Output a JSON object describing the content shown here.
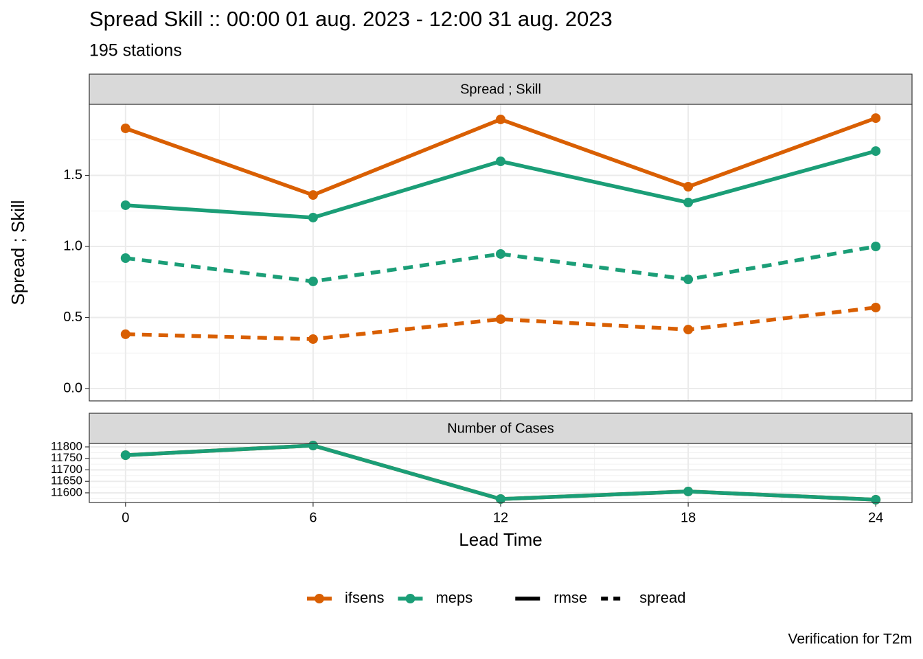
{
  "title": "Spread Skill :: 00:00 01 aug. 2023 - 12:00 31 aug. 2023",
  "subtitle": "195 stations",
  "caption": "Verification for T2m",
  "legend": {
    "colour": [
      {
        "name": "ifsens",
        "color": "#d95f02"
      },
      {
        "name": "meps",
        "color": "#1b9e77"
      }
    ],
    "linetype": [
      {
        "name": "rmse",
        "dash": "solid"
      },
      {
        "name": "spread",
        "dash": "dashed"
      }
    ]
  },
  "chart_data": [
    {
      "type": "line",
      "strip": "Spread ; Skill",
      "y_label": "Spread ; Skill",
      "x": [
        0,
        6,
        12,
        18,
        24
      ],
      "xlim": [
        -1.16,
        25.16
      ],
      "xticks": [
        0,
        6,
        12,
        18,
        24
      ],
      "x_minor": [
        3,
        9,
        15,
        21
      ],
      "ylim": [
        -0.087,
        2.0
      ],
      "yticks": [
        {
          "value": 0,
          "label": "0.0"
        },
        0.5,
        {
          "value": 1,
          "label": "1.0"
        },
        1.5
      ],
      "y_minor": [
        0.25,
        0.75,
        1.25,
        1.75
      ],
      "grid": true,
      "series": [
        {
          "color": "#d95f02",
          "dash": "solid",
          "values": [
            1.831,
            1.362,
            1.894,
            1.42,
            1.903
          ]
        },
        {
          "color": "#1b9e77",
          "dash": "solid",
          "values": [
            1.29,
            1.203,
            1.599,
            1.309,
            1.671
          ]
        },
        {
          "color": "#1b9e77",
          "dash": "dashed",
          "values": [
            0.918,
            0.754,
            0.947,
            0.768,
            1.0
          ]
        },
        {
          "color": "#d95f02",
          "dash": "dashed",
          "values": [
            0.382,
            0.348,
            0.488,
            0.415,
            0.57
          ]
        }
      ]
    },
    {
      "type": "line",
      "strip": "Number of Cases",
      "x_label": "Lead Time",
      "x": [
        0,
        6,
        12,
        18,
        24
      ],
      "xlim": [
        -1.16,
        25.16
      ],
      "xticks": [
        0,
        6,
        12,
        18,
        24
      ],
      "x_minor": [
        3,
        9,
        15,
        21
      ],
      "ylim": [
        11558,
        11815
      ],
      "yticks": [
        11600,
        11650,
        11700,
        11750,
        11800
      ],
      "y_minor": [
        11575,
        11625,
        11675,
        11725,
        11775
      ],
      "grid": true,
      "series": [
        {
          "color": "#d95f02",
          "dash": "solid",
          "values": [
            11764,
            11806,
            11573,
            11606,
            11570
          ]
        },
        {
          "color": "#1b9e77",
          "dash": "solid",
          "values": [
            11764,
            11806,
            11573,
            11606,
            11570
          ]
        }
      ]
    }
  ]
}
